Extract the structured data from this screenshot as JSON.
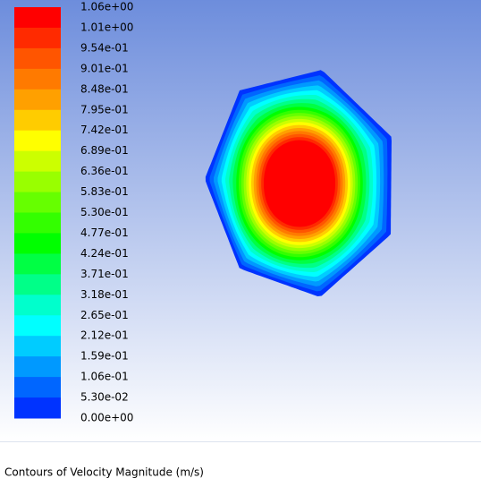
{
  "legend": {
    "labels": [
      "1.06e+00",
      "1.01e+00",
      "9.54e-01",
      "9.01e-01",
      "8.48e-01",
      "7.95e-01",
      "7.42e-01",
      "6.89e-01",
      "6.36e-01",
      "5.83e-01",
      "5.30e-01",
      "4.77e-01",
      "4.24e-01",
      "3.71e-01",
      "3.18e-01",
      "2.65e-01",
      "2.12e-01",
      "1.59e-01",
      "1.06e-01",
      "5.30e-02",
      "0.00e+00"
    ],
    "colors": [
      "#ff0000",
      "#ff2a00",
      "#ff5500",
      "#ff7a00",
      "#ffa000",
      "#ffcc00",
      "#ffff00",
      "#ccff00",
      "#99ff00",
      "#66ff00",
      "#33ff00",
      "#00ff00",
      "#00ff44",
      "#00ff88",
      "#00ffcc",
      "#00ffff",
      "#00ccff",
      "#0099ff",
      "#0066ff",
      "#0033ff"
    ]
  },
  "caption": "Contours of Velocity Magnitude (m/s)"
}
